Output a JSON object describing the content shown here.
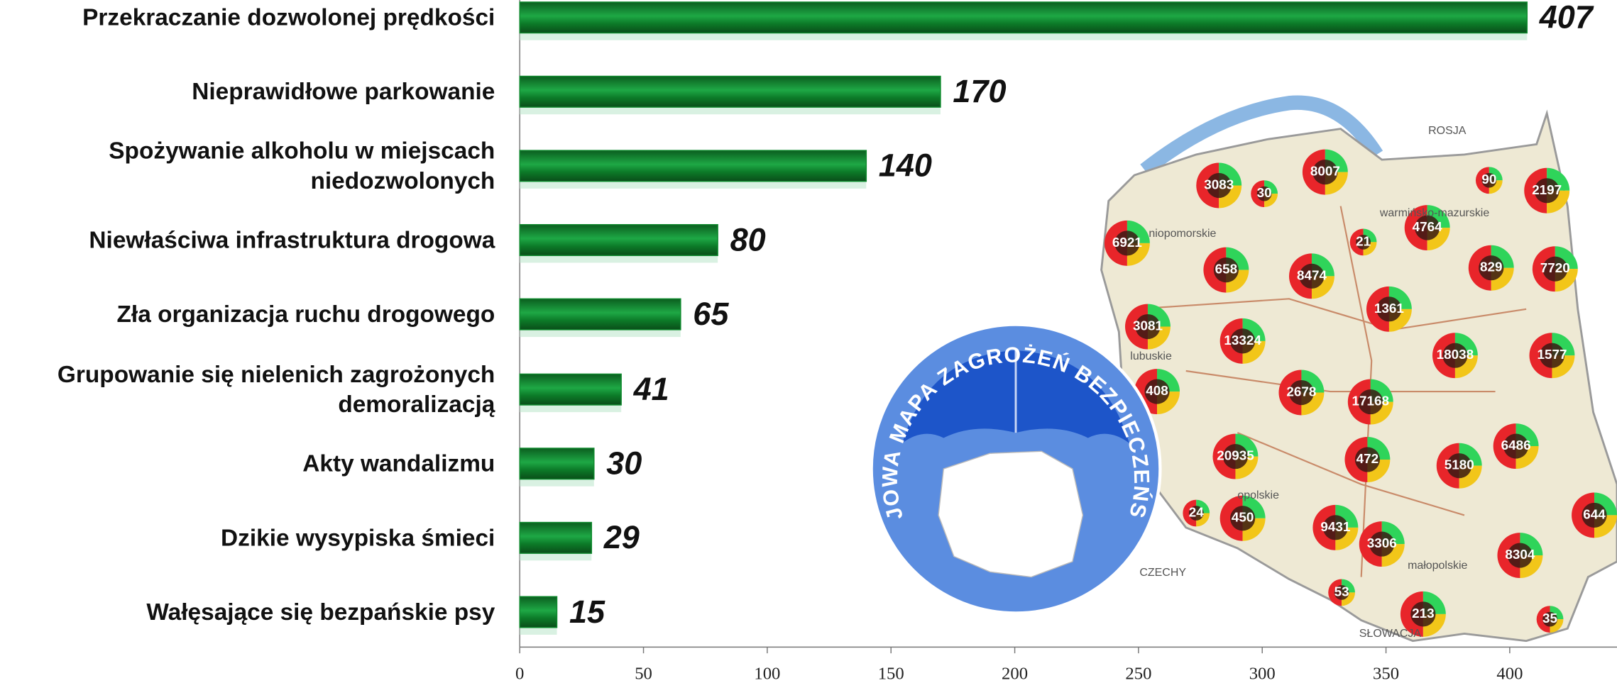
{
  "chart_data": {
    "type": "barh",
    "categories": [
      "Przekraczanie dozwolonej prędkości",
      "Nieprawidłowe parkowanie",
      "Spożywanie alkoholu w miejscach\nniedozwolonych",
      "Niewłaściwa infrastruktura drogowa",
      "Zła organizacja ruchu drogowego",
      "Grupowanie się nielenich zagrożonych\ndemoralizacją",
      "Akty wandalizmu",
      "Dzikie wysypiska śmieci",
      "Wałęsające się bezpańskie psy"
    ],
    "values": [
      407,
      170,
      140,
      80,
      65,
      41,
      30,
      29,
      15
    ],
    "color": "#0f8a2e",
    "xlim": [
      0,
      440
    ],
    "xticks": [
      0,
      50,
      100,
      150,
      200,
      250,
      300,
      350,
      400
    ]
  },
  "map": {
    "logo": "KRAJOWA MAPA ZAGROŻEŃ BEZPIECZEŃSTWA",
    "region_labels": [
      "ROSJA",
      "warmińsko-mazurskie",
      "niopomorskie",
      "lubuskie",
      "opolskie",
      "małopolskie",
      "CZECHY",
      "SŁOWACJA"
    ],
    "markers": [
      3083,
      30,
      8007,
      90,
      2197,
      6921,
      4764,
      21,
      658,
      8474,
      829,
      7720,
      1361,
      3081,
      13324,
      18038,
      1577,
      408,
      2678,
      17168,
      20935,
      472,
      5180,
      6486,
      24,
      450,
      9431,
      3306,
      644,
      8304,
      53,
      213,
      35
    ]
  }
}
